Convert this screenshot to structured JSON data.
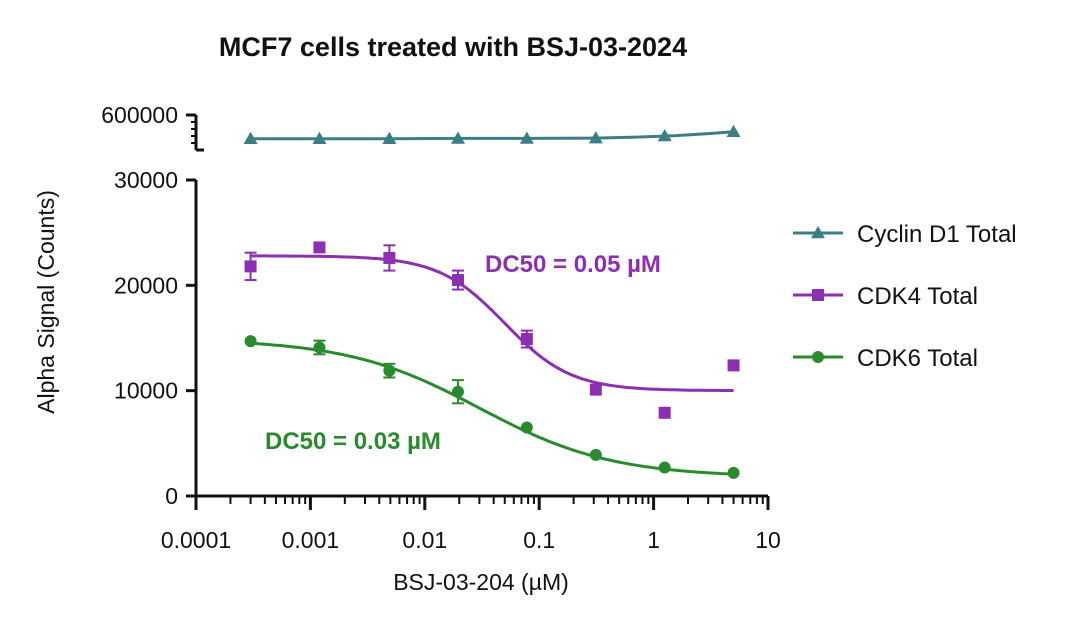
{
  "chart_data": {
    "type": "scatter",
    "title": "MCF7 cells treated with BSJ-03-2024",
    "xlabel": "BSJ-03-204 (µM)",
    "ylabel": "Alpha Signal (Counts)",
    "xscale": "log",
    "xlim": [
      0.0001,
      10
    ],
    "x_ticks": [
      0.0001,
      0.001,
      0.01,
      0.1,
      1,
      10
    ],
    "x_tick_labels": [
      "0.0001",
      "0.001",
      "0.01",
      "0.1",
      "1",
      "10"
    ],
    "y_segments": [
      {
        "range": [
          0,
          30000
        ],
        "ticks": [
          0,
          10000,
          20000,
          30000
        ],
        "tick_labels": [
          "0",
          "10000",
          "20000",
          "30000"
        ]
      },
      {
        "range": [
          500000,
          600000
        ],
        "ticks": [
          600000
        ],
        "tick_labels": [
          "600000"
        ]
      }
    ],
    "legend_position": "right",
    "x": [
      0.0003,
      0.0012,
      0.0049,
      0.0195,
      0.078,
      0.3125,
      1.25,
      5
    ],
    "series": [
      {
        "name": "Cyclin D1 Total",
        "color": "#3b7f84",
        "marker": "triangle",
        "values": [
          532000,
          532000,
          532000,
          533000,
          533000,
          534000,
          540000,
          552000
        ],
        "errors": [
          0,
          0,
          0,
          0,
          0,
          0,
          0,
          0
        ],
        "fit": [
          [
            0.0003,
            532000
          ],
          [
            0.001,
            532000
          ],
          [
            0.005,
            532000
          ],
          [
            0.02,
            533000
          ],
          [
            0.08,
            533000
          ],
          [
            0.3,
            534000
          ],
          [
            0.7,
            537000
          ],
          [
            1.5,
            541000
          ],
          [
            3,
            547000
          ],
          [
            5,
            552000
          ]
        ]
      },
      {
        "name": "CDK4 Total",
        "color": "#8b2fb3",
        "marker": "square",
        "values": [
          21800,
          23600,
          22600,
          20500,
          14900,
          10100,
          7900,
          12400
        ],
        "errors": [
          1300,
          0,
          1200,
          900,
          800,
          0,
          0,
          0
        ],
        "fit_model": {
          "top": 22800,
          "bottom": 10000,
          "dc50": 0.05,
          "hill": 1.5
        }
      },
      {
        "name": "CDK6 Total",
        "color": "#2a8a2e",
        "marker": "circle",
        "values": [
          14700,
          14100,
          11900,
          9900,
          6500,
          3900,
          2700,
          2200
        ],
        "errors": [
          0,
          650,
          650,
          1100,
          0,
          0,
          0,
          0
        ],
        "fit_model": {
          "top": 14900,
          "bottom": 1800,
          "dc50": 0.03,
          "hill": 0.75
        }
      }
    ],
    "annotations": [
      {
        "text": "DC50 = 0.05 µM",
        "series": "CDK4 Total",
        "color": "#8b2fb3"
      },
      {
        "text": "DC50 = 0.03 µM",
        "series": "CDK6 Total",
        "color": "#2a8a2e"
      }
    ]
  }
}
